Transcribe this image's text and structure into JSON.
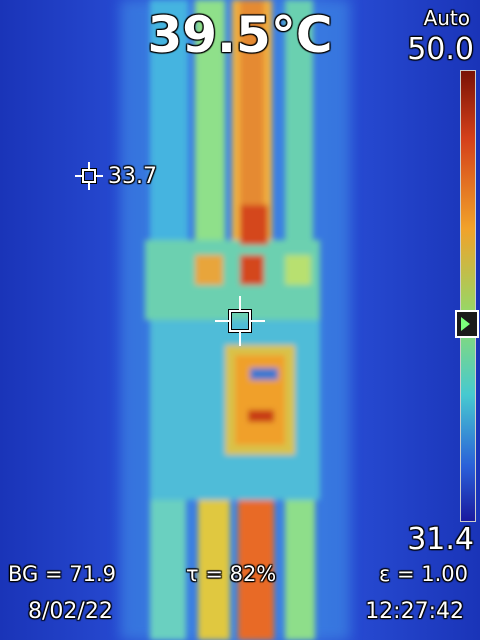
{
  "readout": {
    "center_temp": "39.5°C",
    "spot_temp": "33.7"
  },
  "scale": {
    "mode": "Auto",
    "max": "50.0",
    "min": "31.4",
    "colors": [
      "#8b1a0a",
      "#d9451a",
      "#f0a82a",
      "#9be06a",
      "#4fd0c8",
      "#2f6fe0",
      "#1e1ea8"
    ]
  },
  "params": {
    "bg": "BG = 71.9",
    "tau": "τ = 82%",
    "emissivity": "ε = 1.00"
  },
  "footer": {
    "date": "8/02/22",
    "time": "12:27:42"
  }
}
